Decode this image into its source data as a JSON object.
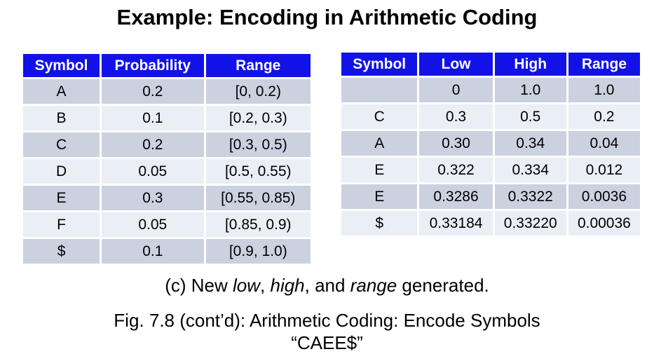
{
  "title": "Example: Encoding in Arithmetic Coding",
  "colors": {
    "header_bg": "#1212e8",
    "header_text": "#ffffff",
    "row_dark": "#cbd1df",
    "row_light": "#eaeef5"
  },
  "left_table": {
    "headers": [
      "Symbol",
      "Probability",
      "Range"
    ],
    "rows": [
      [
        "A",
        "0.2",
        "[0, 0.2)"
      ],
      [
        "B",
        "0.1",
        "[0.2, 0.3)"
      ],
      [
        "C",
        "0.2",
        "[0.3, 0.5)"
      ],
      [
        "D",
        "0.05",
        "[0.5, 0.55)"
      ],
      [
        "E",
        "0.3",
        "[0.55, 0.85)"
      ],
      [
        "F",
        "0.05",
        "[0.85, 0.9)"
      ],
      [
        "$",
        "0.1",
        "[0.9, 1.0)"
      ]
    ]
  },
  "right_table": {
    "headers": [
      "Symbol",
      "Low",
      "High",
      "Range"
    ],
    "rows": [
      [
        "",
        "0",
        "1.0",
        "1.0"
      ],
      [
        "C",
        "0.3",
        "0.5",
        "0.2"
      ],
      [
        "A",
        "0.30",
        "0.34",
        "0.04"
      ],
      [
        "E",
        "0.322",
        "0.334",
        "0.012"
      ],
      [
        "E",
        "0.3286",
        "0.3322",
        "0.0036"
      ],
      [
        "$",
        "0.33184",
        "0.33220",
        "0.00036"
      ]
    ]
  },
  "caption_c": {
    "segments": [
      {
        "text": "(c) New ",
        "italic": false
      },
      {
        "text": "low",
        "italic": true
      },
      {
        "text": ", ",
        "italic": false
      },
      {
        "text": "high",
        "italic": true
      },
      {
        "text": ", and ",
        "italic": false
      },
      {
        "text": "range",
        "italic": true
      },
      {
        "text": " generated.",
        "italic": false
      }
    ]
  },
  "fig_caption": {
    "lines": [
      "Fig. 7.8 (cont’d): Arithmetic Coding: Encode Symbols",
      "“CAEE$”"
    ]
  }
}
